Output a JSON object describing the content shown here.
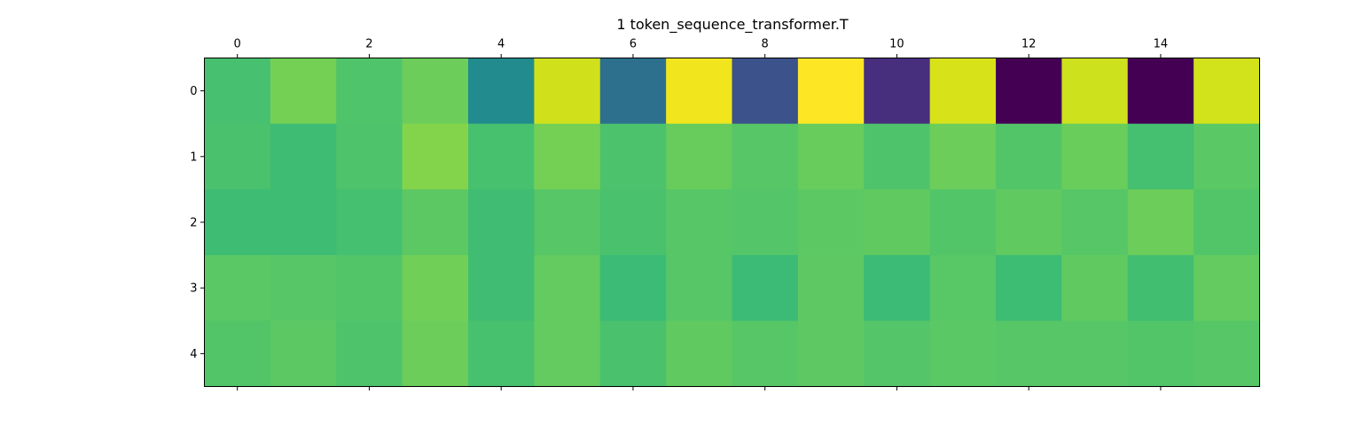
{
  "chart_data": {
    "type": "heatmap",
    "title": "1 token_sequence_transformer.T",
    "colormap": "viridis",
    "x_ticks": [
      "0",
      "2",
      "4",
      "6",
      "8",
      "10",
      "12",
      "14"
    ],
    "y_ticks": [
      "0",
      "1",
      "2",
      "3",
      "4"
    ],
    "x_tick_values": [
      0,
      2,
      4,
      6,
      8,
      10,
      12,
      14
    ],
    "y_tick_values": [
      0,
      1,
      2,
      3,
      4
    ],
    "n_cols": 16,
    "n_rows": 5,
    "x_axis_position": "top",
    "grid": false,
    "colors": [
      [
        "#47c06f",
        "#74d055",
        "#50c46a",
        "#6ccd5a",
        "#228b8d",
        "#d0e11c",
        "#2d708e",
        "#f1e51d",
        "#3b528b",
        "#fde725",
        "#472f7d",
        "#d8e219",
        "#440154",
        "#cde11d",
        "#440154",
        "#d2e21b"
      ],
      [
        "#4ac16d",
        "#3fbc73",
        "#4ec36b",
        "#84d44b",
        "#48c16e",
        "#74d055",
        "#4cc26c",
        "#67cc5c",
        "#56c667",
        "#67cc5c",
        "#4ec36b",
        "#6ccd5a",
        "#52c569",
        "#69cd5b",
        "#45bf70",
        "#5ac864"
      ],
      [
        "#3fbc73",
        "#3fbc73",
        "#45bf70",
        "#5cc863",
        "#40bd72",
        "#56c667",
        "#4ac16d",
        "#56c667",
        "#54c568",
        "#5cc863",
        "#60ca60",
        "#52c569",
        "#60ca60",
        "#56c667",
        "#6ccd5a",
        "#52c569"
      ],
      [
        "#5ac864",
        "#56c667",
        "#52c569",
        "#70cf57",
        "#40bd72",
        "#63cb5f",
        "#3bbb75",
        "#56c667",
        "#3bbb75",
        "#5ec962",
        "#3bbb75",
        "#58c765",
        "#3dbc74",
        "#60ca60",
        "#42be71",
        "#63cb5f"
      ],
      [
        "#52c569",
        "#5cc863",
        "#4ec36b",
        "#6ccd5a",
        "#48c16e",
        "#63cb5f",
        "#4ac16d",
        "#60ca60",
        "#56c667",
        "#5ec962",
        "#54c568",
        "#5ac864",
        "#56c667",
        "#56c667",
        "#52c569",
        "#56c667"
      ]
    ],
    "values": [
      [
        0.6,
        0.74,
        0.62,
        0.72,
        0.27,
        0.95,
        0.21,
        0.99,
        0.15,
        1.0,
        0.09,
        0.96,
        0.0,
        0.95,
        0.0,
        0.95
      ],
      [
        0.61,
        0.58,
        0.62,
        0.79,
        0.6,
        0.74,
        0.61,
        0.7,
        0.64,
        0.7,
        0.62,
        0.72,
        0.63,
        0.71,
        0.59,
        0.66
      ],
      [
        0.58,
        0.58,
        0.59,
        0.67,
        0.58,
        0.64,
        0.61,
        0.64,
        0.64,
        0.67,
        0.68,
        0.63,
        0.68,
        0.64,
        0.72,
        0.63
      ],
      [
        0.66,
        0.64,
        0.63,
        0.73,
        0.58,
        0.68,
        0.57,
        0.64,
        0.57,
        0.67,
        0.57,
        0.65,
        0.57,
        0.68,
        0.59,
        0.68
      ],
      [
        0.63,
        0.67,
        0.62,
        0.72,
        0.6,
        0.68,
        0.61,
        0.68,
        0.64,
        0.67,
        0.64,
        0.66,
        0.64,
        0.64,
        0.63,
        0.64
      ]
    ]
  }
}
